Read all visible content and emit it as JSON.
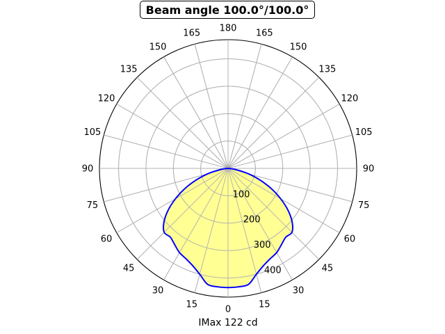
{
  "chart_data": {
    "type": "polar-area",
    "title": "Beam angle 100.0°/100.0°",
    "xlabel": "IMax 122 cd",
    "angle_tick_labels": [
      "0",
      "15",
      "30",
      "45",
      "60",
      "75",
      "90",
      "105",
      "120",
      "135",
      "150",
      "165",
      "180",
      "165",
      "150",
      "135",
      "120",
      "105",
      "90",
      "75",
      "60",
      "45",
      "30",
      "15"
    ],
    "radial_ticks": [
      100,
      200,
      300,
      400
    ],
    "radial_tick_labels": [
      "100",
      "200",
      "300",
      "400"
    ],
    "rlim": [
      0,
      470
    ],
    "grid": true,
    "series": [
      {
        "angles_deg": [
          0,
          5,
          10,
          15,
          20,
          25,
          30,
          35,
          40,
          45,
          50,
          55,
          60,
          65,
          70,
          75,
          80,
          85,
          90
        ],
        "values": [
          435,
          434,
          430,
          400,
          378,
          364,
          355,
          340,
          328,
          330,
          306,
          268,
          222,
          174,
          124,
          78,
          36,
          10,
          0
        ]
      }
    ],
    "colors": {
      "curve": "#0000ff",
      "fill": "#ffff88",
      "grid": "#b0b0b0",
      "frame": "#000000"
    }
  }
}
